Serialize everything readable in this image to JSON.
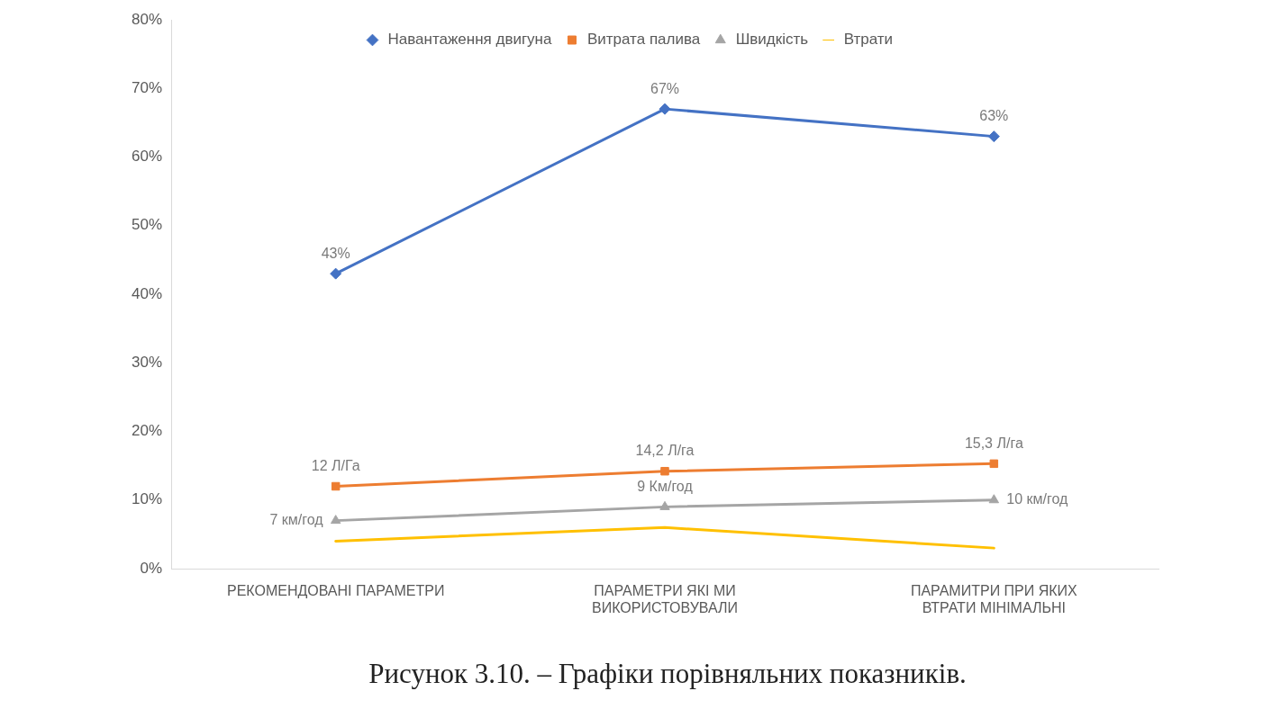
{
  "chart_data": {
    "type": "line",
    "categories": [
      "РЕКОМЕНДОВАНІ ПАРАМЕТРИ",
      "ПАРАМЕТРИ ЯКІ МИ ВИКОРИСТОВУВАЛИ",
      "ПАРАМИТРИ ПРИ ЯКИХ ВТРАТИ МІНІМАЛЬНІ"
    ],
    "series": [
      {
        "name": "Навантаження двигуна",
        "color": "#4472c4",
        "marker": "diamond",
        "values": [
          43,
          67,
          63
        ],
        "value_labels": [
          "43%",
          "67%",
          "63%"
        ]
      },
      {
        "name": "Витрата палива",
        "color": "#ed7d31",
        "marker": "square",
        "values": [
          12,
          14.2,
          15.3
        ],
        "value_labels": [
          "12 Л/Га",
          "14,2 Л/га",
          "15,3 Л/га"
        ]
      },
      {
        "name": "Швидкість",
        "color": "#a5a5a5",
        "marker": "triangle",
        "values": [
          7,
          9,
          10
        ],
        "value_labels": [
          "7 км/год",
          "9 Км/год",
          "10 км/год"
        ]
      },
      {
        "name": "Втрати",
        "color": "#ffc000",
        "marker": "none",
        "values": [
          4,
          6,
          3
        ]
      }
    ],
    "ylim": [
      0,
      80
    ],
    "yticks": [
      {
        "value": 0,
        "label": "0%"
      },
      {
        "value": 10,
        "label": "10%"
      },
      {
        "value": 20,
        "label": "20%"
      },
      {
        "value": 30,
        "label": "30%"
      },
      {
        "value": 40,
        "label": "40%"
      },
      {
        "value": 50,
        "label": "50%"
      },
      {
        "value": 60,
        "label": "60%"
      },
      {
        "value": 70,
        "label": "70%"
      },
      {
        "value": 80,
        "label": "80%"
      }
    ],
    "grid": false,
    "legend": "top",
    "annotations": [
      "Рисунок 3.10. – Графіки порівняльних показників."
    ]
  }
}
